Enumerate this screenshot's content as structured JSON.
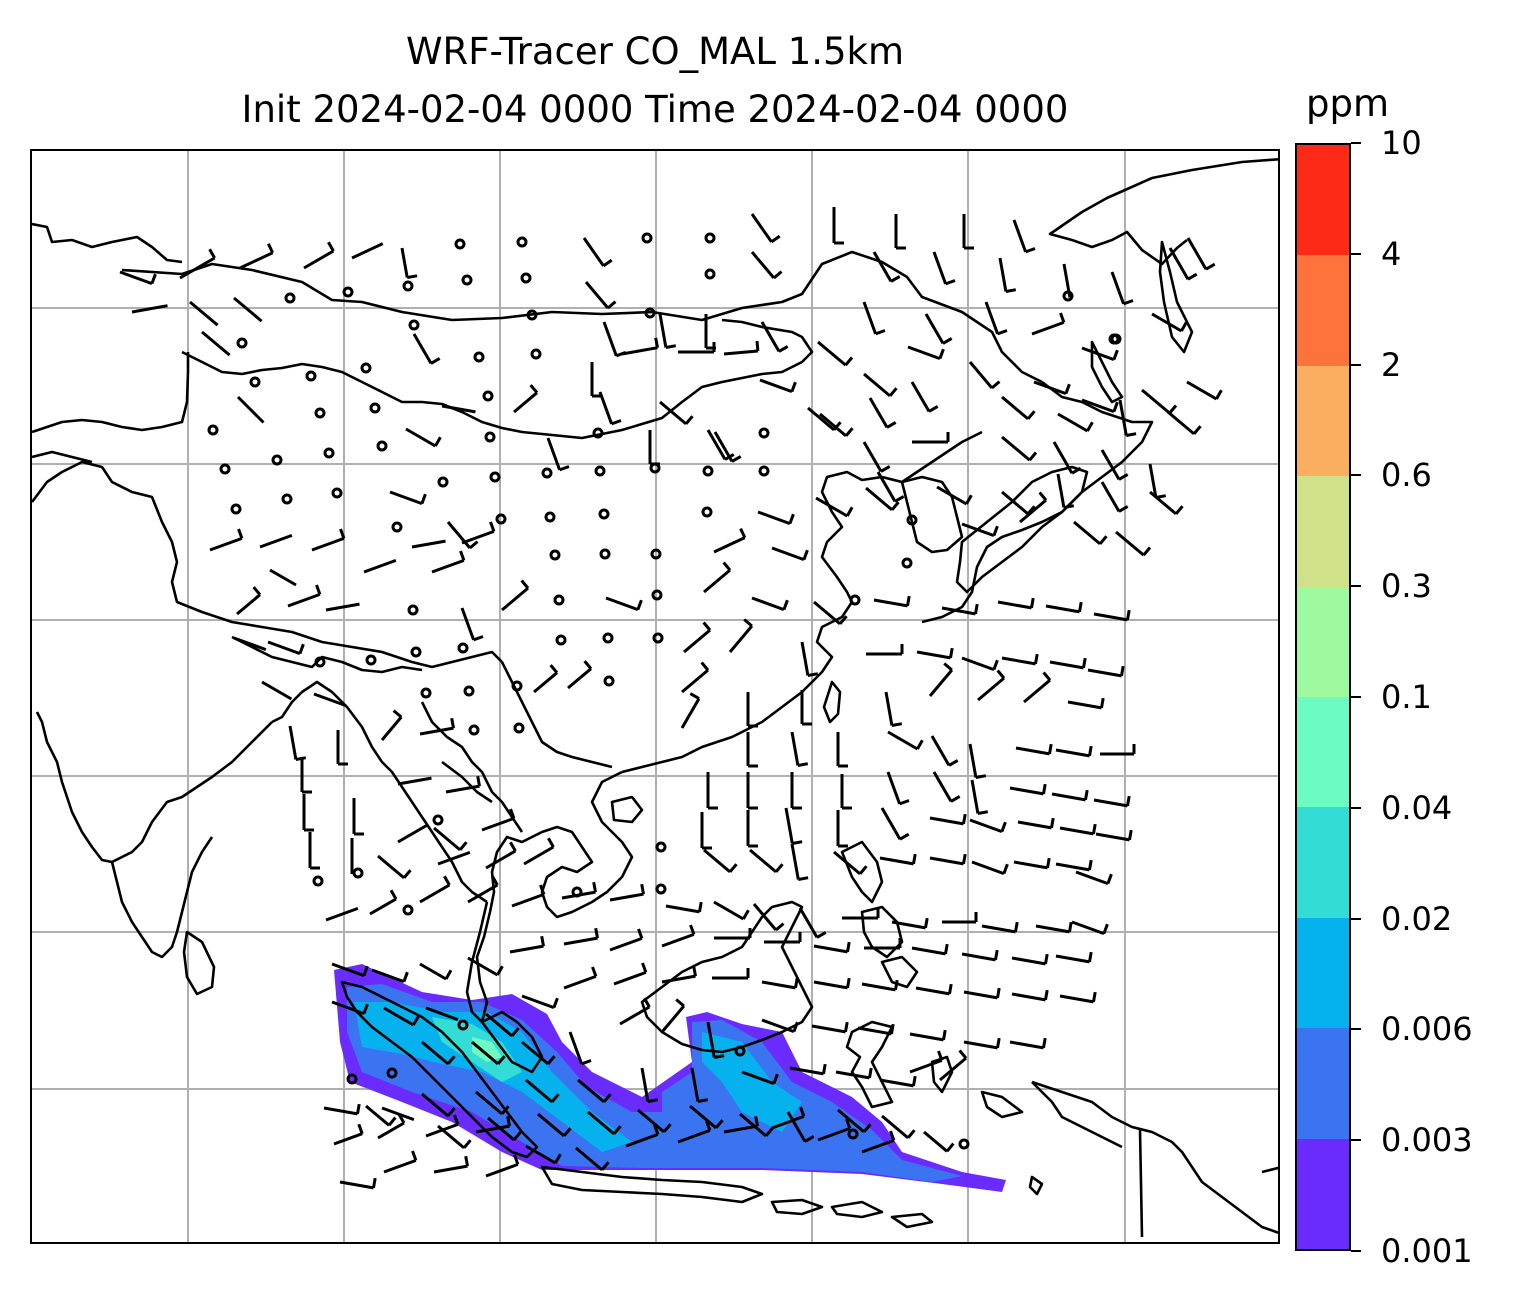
{
  "title": {
    "line1": "WRF-Tracer CO_MAL 1.5km",
    "line2": "Init 2024-02-04 0000 Time 2024-02-04 0000"
  },
  "colorbar": {
    "unit": "ppm",
    "levels": [
      "0.001",
      "0.003",
      "0.006",
      "0.02",
      "0.04",
      "0.1",
      "0.3",
      "0.6",
      "2",
      "4",
      "10"
    ],
    "colors": [
      "#6a2cfc",
      "#3b74f1",
      "#06b2ee",
      "#33dcd4",
      "#6bfbc3",
      "#9ffa9f",
      "#cfe189",
      "#fbae5f",
      "#fd733b",
      "#fe2a18"
    ]
  },
  "map": {
    "gridlines": true,
    "coastline_color": "#000000",
    "tracer": "CO_MAL"
  }
}
